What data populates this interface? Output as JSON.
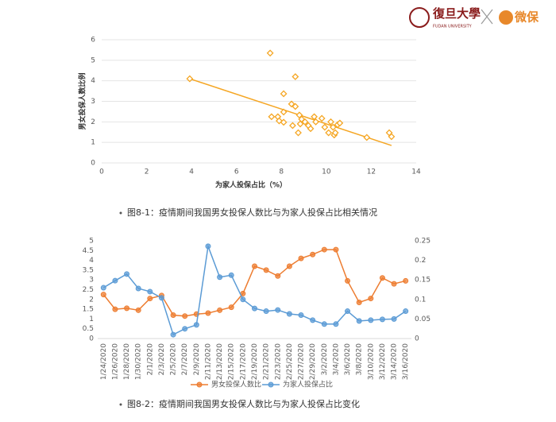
{
  "header": {
    "university": "復旦大學",
    "university_en": "FUDAN UNIVERSITY",
    "brand": "微保"
  },
  "captions": [
    "图8-1：疫情期间我国男女投保人数比与为家人投保占比相关情况",
    "图8-2：疫情期间我国男女投保人数比与为家人投保占比变化"
  ],
  "chart_data": [
    {
      "type": "scatter",
      "x_label": "为家人投保占比（%）",
      "y_label": "男女投保人数比例",
      "color": "#f5a623",
      "grid": true,
      "x": [
        3.92,
        7.5,
        8.62,
        8.1,
        8.45,
        8.62,
        7.56,
        7.84,
        7.9,
        8.1,
        8.1,
        8.8,
        8.9,
        9.05,
        8.84,
        8.5,
        8.75,
        9.2,
        9.3,
        9.46,
        9.53,
        9.8,
        9.93,
        10.1,
        10.2,
        10.3,
        10.35,
        10.4,
        10.5,
        10.6,
        11.8,
        12.8,
        12.9
      ],
      "y": [
        4.1,
        5.35,
        4.2,
        3.37,
        2.87,
        2.75,
        2.25,
        2.25,
        2.05,
        2.48,
        1.98,
        2.33,
        2.13,
        2.0,
        1.9,
        1.82,
        1.47,
        1.82,
        1.67,
        2.25,
        2.0,
        2.17,
        1.74,
        1.47,
        2.0,
        1.74,
        1.36,
        1.47,
        1.86,
        1.94,
        1.24,
        1.47,
        1.28
      ],
      "trendline": {
        "x": [
          3.92,
          12.9
        ],
        "y": [
          4.1,
          0.85
        ]
      },
      "xlim": [
        0,
        14
      ],
      "xticks": [
        0,
        2,
        4,
        6,
        8,
        10,
        12,
        14
      ],
      "ylim": [
        0,
        6
      ],
      "yticks": [
        0,
        1,
        2,
        3,
        4,
        5,
        6
      ]
    },
    {
      "type": "line",
      "legend": "bottom",
      "grid": false,
      "categories": [
        "1/24/2020",
        "1/26/2020",
        "1/28/2020",
        "1/30/2020",
        "2/1/2020",
        "2/3/2020",
        "2/5/2020",
        "2/7/2020",
        "2/9/2020",
        "2/11/2020",
        "2/13/2020",
        "2/15/2020",
        "2/17/2020",
        "2/19/2020",
        "2/21/2020",
        "2/23/2020",
        "2/25/2020",
        "2/27/2020",
        "2/29/2020",
        "3/2/2020",
        "3/4/2020",
        "3/6/2020",
        "3/8/2020",
        "3/10/2020",
        "3/12/2020",
        "3/14/2020",
        "3/16/2020"
      ],
      "series": [
        {
          "name": "男女投保人数比",
          "color": "#ed7d31",
          "values": [
            2.25,
            1.5,
            1.55,
            1.45,
            2.05,
            2.2,
            1.2,
            1.15,
            1.25,
            1.3,
            1.45,
            1.6,
            2.3,
            3.7,
            3.5,
            3.2,
            3.7,
            4.1,
            4.3,
            4.55,
            4.55,
            2.95,
            1.85,
            2.05,
            3.1,
            2.8,
            2.95
          ]
        },
        {
          "name": "为家人投保占比",
          "color": "#5b9bd5",
          "axis": "y2",
          "values": [
            0.13,
            0.148,
            0.165,
            0.128,
            0.12,
            0.104,
            0.01,
            0.025,
            0.035,
            0.236,
            0.157,
            0.162,
            0.1,
            0.077,
            0.07,
            0.073,
            0.063,
            0.06,
            0.047,
            0.037,
            0.037,
            0.07,
            0.045,
            0.047,
            0.049,
            0.05,
            0.07
          ]
        }
      ],
      "ylim": [
        0,
        5
      ],
      "yticks": [
        0,
        0.5,
        1,
        1.5,
        2,
        2.5,
        3,
        3.5,
        4,
        4.5,
        5
      ],
      "y2lim": [
        0,
        0.25
      ],
      "y2ticks": [
        0,
        0.05,
        0.1,
        0.15,
        0.2,
        0.25
      ]
    }
  ]
}
